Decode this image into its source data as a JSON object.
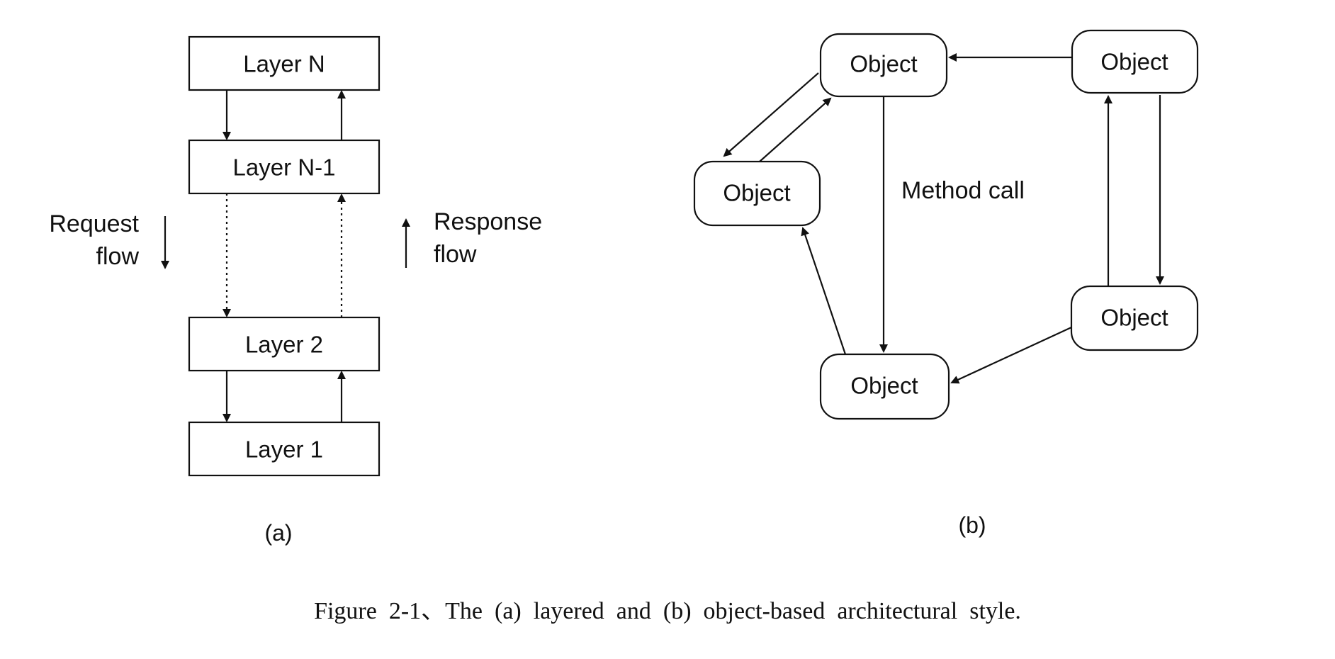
{
  "panel_a": {
    "layers": [
      "Layer N",
      "Layer N-1",
      "Layer 2",
      "Layer 1"
    ],
    "request_label": [
      "Request",
      "flow"
    ],
    "response_label": [
      "Response",
      "flow"
    ],
    "sub_label": "(a)"
  },
  "panel_b": {
    "objects": [
      "Object",
      "Object",
      "Object",
      "Object",
      "Object"
    ],
    "method_call_label": "Method call",
    "sub_label": "(b)"
  },
  "caption": "Figure  2-1、The  (a)  layered  and  (b)  object-based  architectural  style."
}
